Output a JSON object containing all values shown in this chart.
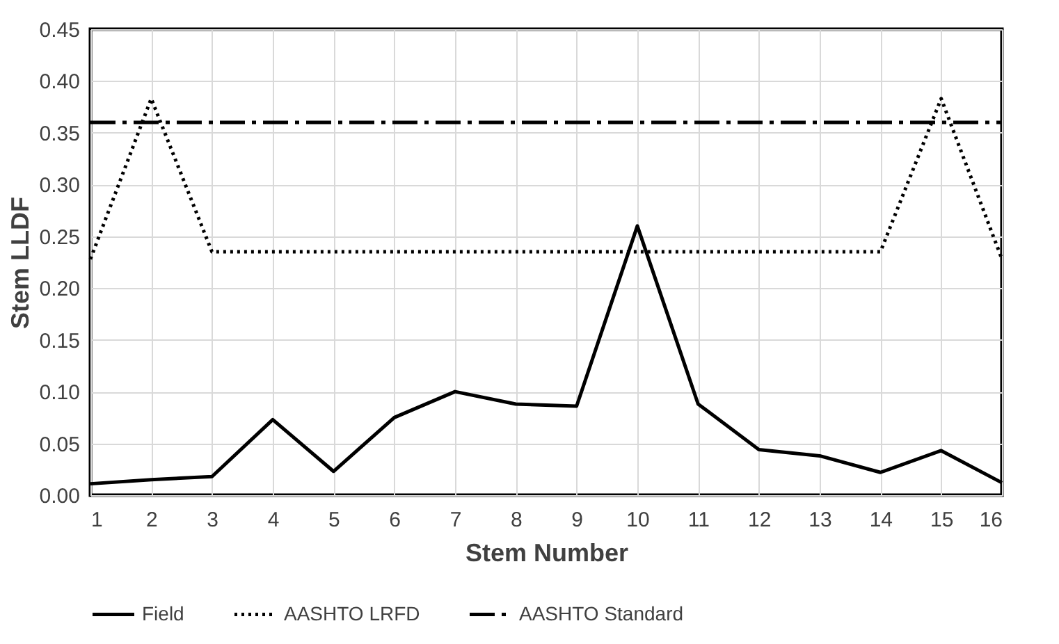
{
  "chart_data": {
    "type": "line",
    "xlabel": "Stem Number",
    "ylabel": "Stem LLDF",
    "x": [
      1,
      2,
      3,
      4,
      5,
      6,
      7,
      8,
      9,
      10,
      11,
      12,
      13,
      14,
      15,
      16
    ],
    "series": [
      {
        "name": "Field",
        "color": "#000000",
        "line_style": "solid",
        "values": [
          0.011,
          0.015,
          0.018,
          0.073,
          0.023,
          0.075,
          0.1,
          0.088,
          0.086,
          0.26,
          0.088,
          0.044,
          0.038,
          0.022,
          0.043,
          0.012
        ]
      },
      {
        "name": "AASHTO LRFD",
        "color": "#000000",
        "line_style": "dotted",
        "values": [
          0.228,
          0.383,
          0.235,
          0.235,
          0.235,
          0.235,
          0.235,
          0.235,
          0.235,
          0.235,
          0.235,
          0.235,
          0.235,
          0.235,
          0.383,
          0.228
        ]
      },
      {
        "name": "AASHTO Standard",
        "color": "#000000",
        "line_style": "dashed",
        "values": [
          0.36,
          0.36,
          0.36,
          0.36,
          0.36,
          0.36,
          0.36,
          0.36,
          0.36,
          0.36,
          0.36,
          0.36,
          0.36,
          0.36,
          0.36,
          0.36
        ]
      }
    ],
    "xlim": [
      1,
      16
    ],
    "xticks": [
      1,
      2,
      3,
      4,
      5,
      6,
      7,
      8,
      9,
      10,
      11,
      12,
      13,
      14,
      15,
      16
    ],
    "ylim": [
      0,
      0.45
    ],
    "yticks": [
      {
        "value": 0,
        "label": "0.00"
      },
      0.05,
      {
        "value": 0.1,
        "label": "0.10"
      },
      0.15,
      {
        "value": 0.2,
        "label": "0.20"
      },
      0.25,
      {
        "value": 0.3,
        "label": "0.30"
      },
      0.35,
      {
        "value": 0.4,
        "label": "0.40"
      },
      0.45
    ],
    "grid": true,
    "legend": "bottom",
    "marker": "none"
  }
}
